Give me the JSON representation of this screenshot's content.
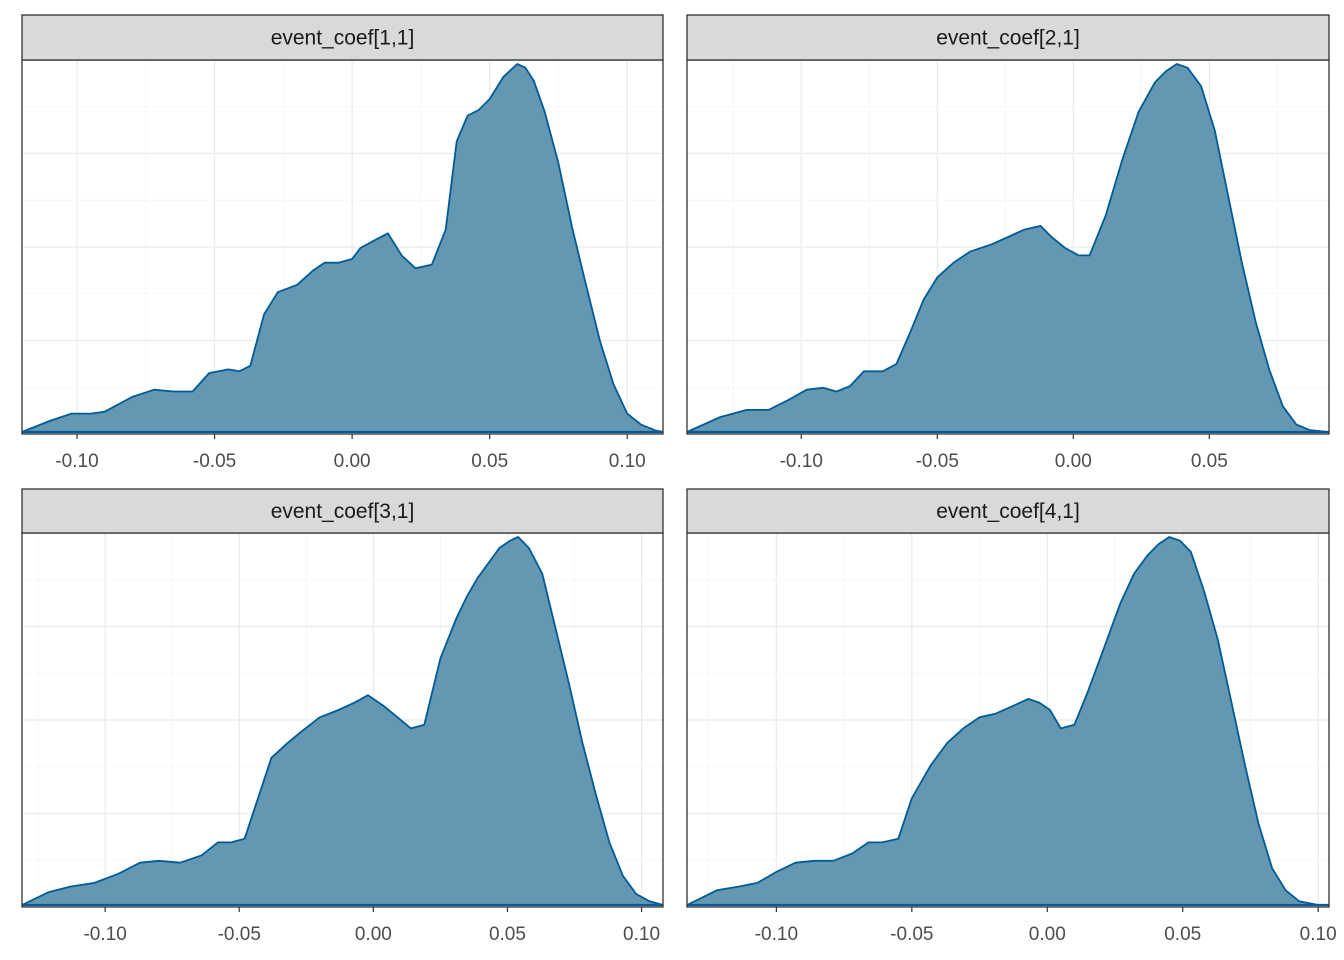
{
  "colors": {
    "fill": "#6497b1",
    "line": "#005b96",
    "strip_bg": "#d9d9d9",
    "grid_major": "#ebebeb",
    "grid_minor": "#f5f5f5",
    "border": "#333333",
    "tick_text": "#4d4d4d"
  },
  "chart_data": [
    {
      "type": "area",
      "title": "event_coef[1,1]",
      "xlim": [
        -0.12,
        0.113
      ],
      "x_ticks": [
        -0.1,
        -0.05,
        0.0,
        0.05,
        0.1
      ],
      "x_tick_labels": [
        "-0.10",
        "-0.05",
        "0.00",
        "0.05",
        "0.10"
      ],
      "y_axis_labels_shown": false,
      "grid": true,
      "series": [
        {
          "x": [
            -0.12,
            -0.11,
            -0.102,
            -0.095,
            -0.09,
            -0.08,
            -0.072,
            -0.065,
            -0.058,
            -0.052,
            -0.045,
            -0.041,
            -0.037,
            -0.032,
            -0.027,
            -0.02,
            -0.014,
            -0.01,
            -0.005,
            0.0,
            0.003,
            0.008,
            0.013,
            0.018,
            0.023,
            0.029,
            0.034,
            0.038,
            0.042,
            0.046,
            0.05,
            0.055,
            0.06,
            0.063,
            0.066,
            0.07,
            0.075,
            0.08,
            0.085,
            0.09,
            0.095,
            0.1,
            0.105,
            0.11,
            0.113
          ],
          "y": [
            0.0,
            0.03,
            0.05,
            0.05,
            0.055,
            0.095,
            0.115,
            0.11,
            0.11,
            0.16,
            0.17,
            0.165,
            0.18,
            0.32,
            0.38,
            0.4,
            0.44,
            0.46,
            0.46,
            0.47,
            0.5,
            0.52,
            0.54,
            0.48,
            0.445,
            0.455,
            0.55,
            0.79,
            0.86,
            0.875,
            0.905,
            0.965,
            1.0,
            0.99,
            0.955,
            0.87,
            0.73,
            0.555,
            0.4,
            0.25,
            0.13,
            0.05,
            0.02,
            0.005,
            0.0
          ]
        }
      ]
    },
    {
      "type": "area",
      "title": "event_coef[2,1]",
      "xlim": [
        -0.142,
        0.094
      ],
      "x_ticks": [
        -0.1,
        -0.05,
        0.0,
        0.05
      ],
      "x_tick_labels": [
        "-0.10",
        "-0.05",
        "0.00",
        "0.05"
      ],
      "y_axis_labels_shown": false,
      "grid": true,
      "series": [
        {
          "x": [
            -0.142,
            -0.13,
            -0.12,
            -0.112,
            -0.104,
            -0.098,
            -0.092,
            -0.087,
            -0.082,
            -0.077,
            -0.07,
            -0.065,
            -0.06,
            -0.055,
            -0.05,
            -0.044,
            -0.038,
            -0.03,
            -0.024,
            -0.018,
            -0.012,
            -0.008,
            -0.003,
            0.002,
            0.006,
            0.012,
            0.018,
            0.024,
            0.03,
            0.034,
            0.038,
            0.042,
            0.047,
            0.052,
            0.057,
            0.062,
            0.067,
            0.072,
            0.077,
            0.082,
            0.087,
            0.094
          ],
          "y": [
            0.0,
            0.04,
            0.06,
            0.06,
            0.09,
            0.115,
            0.12,
            0.11,
            0.125,
            0.165,
            0.165,
            0.185,
            0.27,
            0.36,
            0.42,
            0.46,
            0.49,
            0.51,
            0.53,
            0.55,
            0.56,
            0.53,
            0.5,
            0.48,
            0.48,
            0.59,
            0.74,
            0.87,
            0.95,
            0.98,
            1.0,
            0.99,
            0.94,
            0.82,
            0.64,
            0.46,
            0.3,
            0.17,
            0.07,
            0.02,
            0.005,
            0.0
          ]
        }
      ]
    },
    {
      "type": "area",
      "title": "event_coef[3,1]",
      "xlim": [
        -0.131,
        0.108
      ],
      "x_ticks": [
        -0.1,
        -0.05,
        0.0,
        0.05,
        0.1
      ],
      "x_tick_labels": [
        "-0.10",
        "-0.05",
        "0.00",
        "0.05",
        "0.10"
      ],
      "y_axis_labels_shown": false,
      "grid": true,
      "series": [
        {
          "x": [
            -0.131,
            -0.121,
            -0.113,
            -0.104,
            -0.095,
            -0.087,
            -0.08,
            -0.072,
            -0.064,
            -0.058,
            -0.053,
            -0.048,
            -0.043,
            -0.038,
            -0.032,
            -0.027,
            -0.02,
            -0.013,
            -0.007,
            -0.002,
            0.004,
            0.009,
            0.014,
            0.019,
            0.025,
            0.031,
            0.035,
            0.039,
            0.043,
            0.047,
            0.051,
            0.054,
            0.058,
            0.063,
            0.068,
            0.073,
            0.078,
            0.083,
            0.088,
            0.093,
            0.098,
            0.103,
            0.108
          ],
          "y": [
            0.0,
            0.035,
            0.05,
            0.06,
            0.085,
            0.115,
            0.12,
            0.115,
            0.135,
            0.17,
            0.17,
            0.18,
            0.29,
            0.4,
            0.44,
            0.47,
            0.51,
            0.53,
            0.55,
            0.57,
            0.54,
            0.51,
            0.48,
            0.49,
            0.67,
            0.78,
            0.84,
            0.89,
            0.93,
            0.97,
            0.99,
            1.0,
            0.97,
            0.9,
            0.75,
            0.6,
            0.44,
            0.3,
            0.17,
            0.08,
            0.03,
            0.01,
            0.0
          ]
        }
      ]
    },
    {
      "type": "area",
      "title": "event_coef[4,1]",
      "xlim": [
        -0.133,
        0.104
      ],
      "x_ticks": [
        -0.1,
        -0.05,
        0.0,
        0.05,
        0.1
      ],
      "x_tick_labels": [
        "-0.10",
        "-0.05",
        "0.00",
        "0.05",
        "0.10"
      ],
      "y_axis_labels_shown": false,
      "grid": true,
      "series": [
        {
          "x": [
            -0.133,
            -0.122,
            -0.114,
            -0.107,
            -0.1,
            -0.093,
            -0.086,
            -0.079,
            -0.072,
            -0.066,
            -0.061,
            -0.055,
            -0.05,
            -0.043,
            -0.037,
            -0.031,
            -0.025,
            -0.019,
            -0.013,
            -0.007,
            -0.003,
            0.001,
            0.005,
            0.01,
            0.015,
            0.021,
            0.027,
            0.032,
            0.037,
            0.041,
            0.045,
            0.049,
            0.053,
            0.058,
            0.063,
            0.068,
            0.073,
            0.078,
            0.083,
            0.088,
            0.093,
            0.1,
            0.104
          ],
          "y": [
            0.0,
            0.04,
            0.05,
            0.06,
            0.09,
            0.115,
            0.12,
            0.12,
            0.14,
            0.17,
            0.17,
            0.18,
            0.29,
            0.38,
            0.44,
            0.48,
            0.51,
            0.52,
            0.54,
            0.56,
            0.55,
            0.53,
            0.48,
            0.49,
            0.58,
            0.7,
            0.82,
            0.9,
            0.95,
            0.98,
            1.0,
            0.99,
            0.96,
            0.85,
            0.72,
            0.55,
            0.38,
            0.22,
            0.1,
            0.04,
            0.01,
            0.0,
            0.0
          ]
        }
      ]
    }
  ]
}
